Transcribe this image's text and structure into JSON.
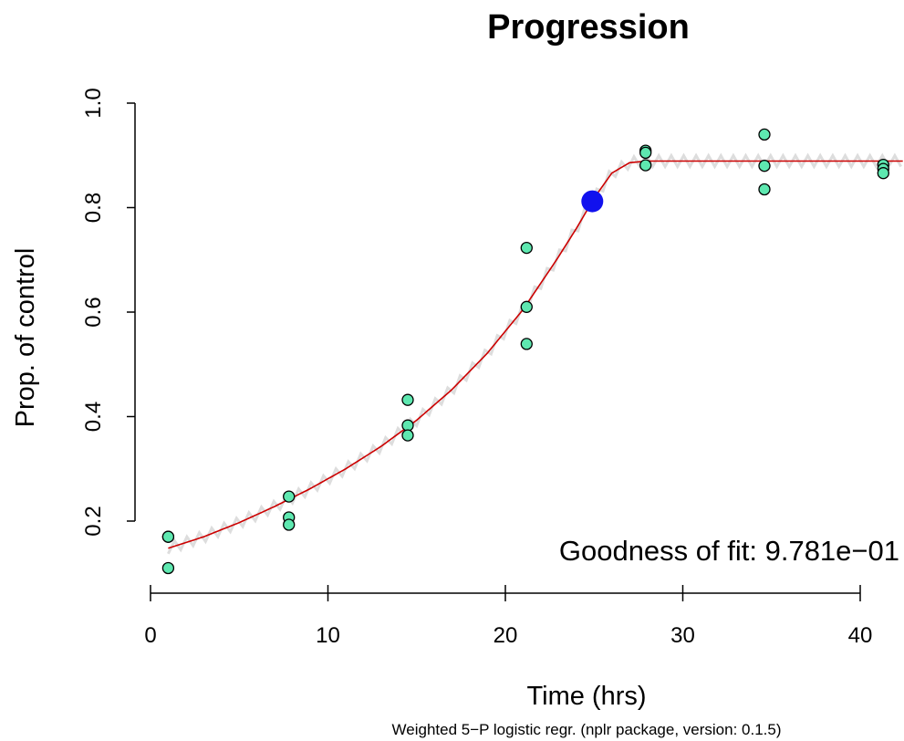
{
  "chart_data": {
    "type": "scatter",
    "title": "Progression",
    "xlabel": "Time (hrs)",
    "ylabel": "Prop. of control",
    "subtitle": "Weighted 5−P logistic regr. (nplr package, version: 0.1.5)",
    "annotation": "Goodness of fit: 9.781e−01",
    "xlim": [
      0,
      42
    ],
    "ylim": [
      0.1,
      1.0
    ],
    "x_ticks": [
      0,
      10,
      20,
      30,
      40
    ],
    "x_tick_labels": [
      "0",
      "10",
      "20",
      "30",
      "40"
    ],
    "y_ticks": [
      0.2,
      0.4,
      0.6,
      0.8,
      1.0
    ],
    "y_tick_labels": [
      "0.2",
      "0.4",
      "0.6",
      "0.8",
      "1.0"
    ],
    "grid": false,
    "point_color": "#5ee8b0",
    "fit_color": "#cc0000",
    "ci_color": "#dddddd",
    "inflection_color": "#1111ee",
    "points": [
      {
        "x": 1.0,
        "y": 0.17
      },
      {
        "x": 1.0,
        "y": 0.17
      },
      {
        "x": 1.0,
        "y": 0.11
      },
      {
        "x": 7.8,
        "y": 0.247
      },
      {
        "x": 7.8,
        "y": 0.207
      },
      {
        "x": 7.8,
        "y": 0.193
      },
      {
        "x": 14.5,
        "y": 0.432
      },
      {
        "x": 14.5,
        "y": 0.383
      },
      {
        "x": 14.5,
        "y": 0.364
      },
      {
        "x": 21.2,
        "y": 0.723
      },
      {
        "x": 21.2,
        "y": 0.61
      },
      {
        "x": 21.2,
        "y": 0.539
      },
      {
        "x": 27.9,
        "y": 0.909
      },
      {
        "x": 27.9,
        "y": 0.905
      },
      {
        "x": 27.9,
        "y": 0.881
      },
      {
        "x": 34.6,
        "y": 0.94
      },
      {
        "x": 34.6,
        "y": 0.88
      },
      {
        "x": 34.6,
        "y": 0.835
      },
      {
        "x": 41.3,
        "y": 0.882
      },
      {
        "x": 41.3,
        "y": 0.874
      },
      {
        "x": 41.3,
        "y": 0.866
      }
    ],
    "fit_curve": {
      "name": "fit",
      "x": [
        1,
        3,
        5,
        7,
        9,
        11,
        13,
        15,
        17,
        19,
        21,
        23,
        24,
        25,
        26,
        27,
        28,
        30,
        35,
        42
      ],
      "y": [
        0.148,
        0.17,
        0.197,
        0.228,
        0.262,
        0.3,
        0.343,
        0.393,
        0.452,
        0.522,
        0.605,
        0.706,
        0.76,
        0.818,
        0.866,
        0.886,
        0.889,
        0.889,
        0.889,
        0.889
      ]
    },
    "inflection_point": {
      "x": 24.9,
      "y": 0.812
    }
  }
}
